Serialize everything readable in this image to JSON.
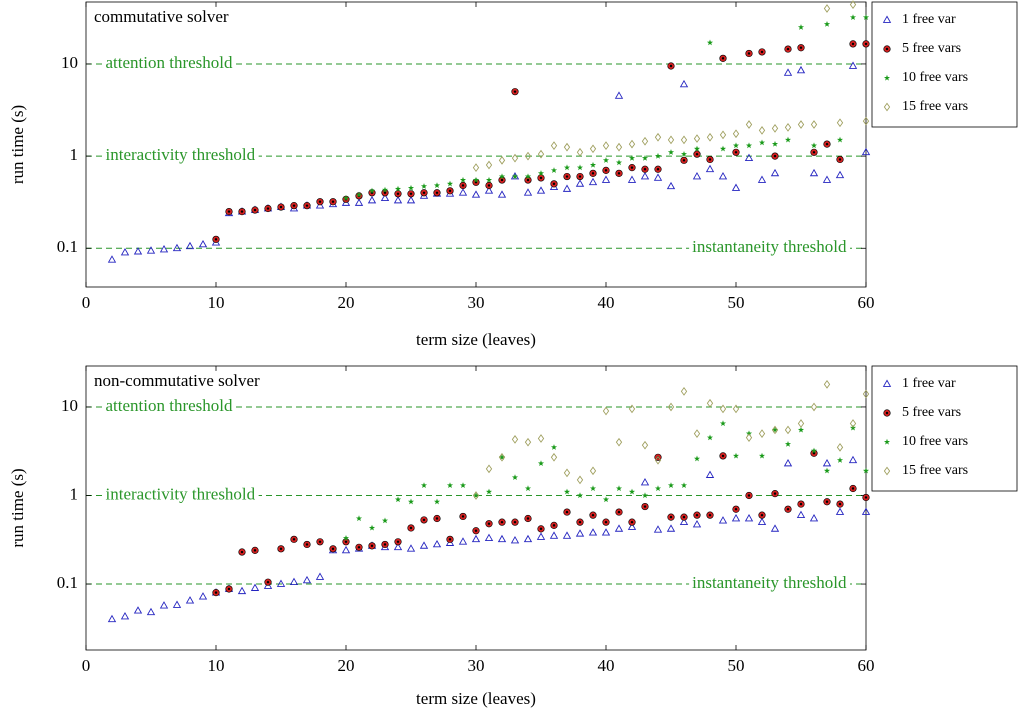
{
  "chart_data": [
    {
      "type": "scatter",
      "title": "commutative solver",
      "xlabel": "term size (leaves)",
      "ylabel": "run time (s)",
      "xlim": [
        0,
        60
      ],
      "xticks": [
        0,
        10,
        20,
        30,
        40,
        50,
        60
      ],
      "ylim": [
        0.038,
        47
      ],
      "yticks": [
        0.1,
        1,
        10
      ],
      "log_y": true,
      "legend": "outside-right",
      "thresholds": [
        {
          "value": 10,
          "label": "attention threshold",
          "align": "left"
        },
        {
          "value": 1,
          "label": "interactivity threshold",
          "align": "left"
        },
        {
          "value": 0.1,
          "label": "instantaneity threshold",
          "align": "right"
        }
      ],
      "threshold_color": "#2a962a",
      "x": [
        2,
        3,
        4,
        5,
        6,
        7,
        8,
        9,
        10,
        11,
        12,
        13,
        14,
        15,
        16,
        17,
        18,
        19,
        20,
        21,
        22,
        23,
        24,
        25,
        26,
        27,
        28,
        29,
        30,
        31,
        32,
        33,
        34,
        35,
        36,
        37,
        38,
        39,
        40,
        41,
        42,
        43,
        44,
        45,
        46,
        47,
        48,
        49,
        50,
        51,
        52,
        53,
        54,
        55,
        56,
        57,
        58,
        59,
        60
      ],
      "series": [
        {
          "name": "1 free var",
          "color": "#2424c0",
          "marker": "triangle",
          "values": [
            0.075,
            0.09,
            0.092,
            0.094,
            0.097,
            0.1,
            0.105,
            0.11,
            0.115,
            0.24,
            0.25,
            0.26,
            0.27,
            0.28,
            0.27,
            0.29,
            0.29,
            0.3,
            0.31,
            0.31,
            0.33,
            0.35,
            0.33,
            0.33,
            0.37,
            0.39,
            0.39,
            0.4,
            0.38,
            0.42,
            0.38,
            0.6,
            0.4,
            0.42,
            0.46,
            0.44,
            0.5,
            0.52,
            0.55,
            4.5,
            0.55,
            0.6,
            0.58,
            0.47,
            6,
            0.6,
            0.72,
            0.6,
            0.45,
            0.95,
            0.55,
            0.65,
            8,
            8.5,
            0.65,
            0.55,
            0.62,
            9.5,
            1.1
          ]
        },
        {
          "name": "5 free vars",
          "color": "#d42020",
          "marker": "circle",
          "values": [
            null,
            null,
            null,
            null,
            null,
            null,
            null,
            null,
            0.125,
            0.25,
            0.25,
            0.26,
            0.27,
            0.28,
            0.29,
            0.29,
            0.32,
            0.32,
            0.34,
            0.37,
            0.4,
            0.4,
            0.39,
            0.39,
            0.4,
            0.4,
            0.42,
            0.48,
            0.52,
            0.48,
            0.55,
            5,
            0.55,
            0.58,
            0.5,
            0.6,
            0.6,
            0.65,
            0.7,
            0.65,
            0.75,
            0.72,
            0.72,
            9.5,
            0.9,
            1.05,
            0.92,
            11.5,
            1.1,
            13,
            13.5,
            1.0,
            14.5,
            15,
            1.1,
            1.35,
            0.92,
            16.5,
            16.5
          ]
        },
        {
          "name": "10 free vars",
          "color": "#1a9a1a",
          "marker": "star",
          "values": [
            null,
            null,
            null,
            null,
            null,
            null,
            null,
            null,
            null,
            null,
            null,
            null,
            null,
            null,
            null,
            null,
            null,
            null,
            0.35,
            0.38,
            0.42,
            0.43,
            0.44,
            0.45,
            0.47,
            0.48,
            0.5,
            0.55,
            0.55,
            0.55,
            0.6,
            0.6,
            0.6,
            0.65,
            0.7,
            0.75,
            0.75,
            0.8,
            0.9,
            0.85,
            0.95,
            0.95,
            1.0,
            1.1,
            1.05,
            1.2,
            17,
            1.2,
            1.3,
            1.3,
            1.4,
            1.35,
            1.5,
            25,
            1.3,
            27,
            1.5,
            32,
            32
          ]
        },
        {
          "name": "15 free vars",
          "color": "#a0a060",
          "marker": "diamond",
          "values": [
            null,
            null,
            null,
            null,
            null,
            null,
            null,
            null,
            null,
            null,
            null,
            null,
            null,
            null,
            null,
            null,
            null,
            null,
            null,
            null,
            null,
            null,
            null,
            null,
            null,
            null,
            null,
            null,
            0.75,
            0.8,
            0.9,
            0.95,
            1.0,
            1.05,
            1.3,
            1.25,
            1.1,
            1.2,
            1.3,
            1.25,
            1.35,
            1.45,
            1.6,
            1.5,
            1.5,
            1.55,
            1.6,
            1.7,
            1.75,
            2.2,
            1.9,
            2.0,
            2.05,
            2.2,
            2.2,
            40,
            2.3,
            44,
            2.4
          ]
        }
      ]
    },
    {
      "type": "scatter",
      "title": "non-commutative solver",
      "xlabel": "term size (leaves)",
      "ylabel": "run time (s)",
      "xlim": [
        0,
        60
      ],
      "xticks": [
        0,
        10,
        20,
        30,
        40,
        50,
        60
      ],
      "ylim": [
        0.018,
        29
      ],
      "yticks": [
        0.1,
        1,
        10
      ],
      "log_y": true,
      "legend": "outside-right",
      "thresholds": [
        {
          "value": 10,
          "label": "attention threshold",
          "align": "left"
        },
        {
          "value": 1,
          "label": "interactivity threshold",
          "align": "left"
        },
        {
          "value": 0.1,
          "label": "instantaneity threshold",
          "align": "right"
        }
      ],
      "threshold_color": "#2a962a",
      "x": [
        2,
        3,
        4,
        5,
        6,
        7,
        8,
        9,
        10,
        11,
        12,
        13,
        14,
        15,
        16,
        17,
        18,
        19,
        20,
        21,
        22,
        23,
        24,
        25,
        26,
        27,
        28,
        29,
        30,
        31,
        32,
        33,
        34,
        35,
        36,
        37,
        38,
        39,
        40,
        41,
        42,
        43,
        44,
        45,
        46,
        47,
        48,
        49,
        50,
        51,
        52,
        53,
        54,
        55,
        56,
        57,
        58,
        59,
        60
      ],
      "series": [
        {
          "name": "1 free var",
          "color": "#2424c0",
          "marker": "triangle",
          "values": [
            0.04,
            0.043,
            0.05,
            0.048,
            0.057,
            0.058,
            0.065,
            0.072,
            0.08,
            0.088,
            0.083,
            0.09,
            0.095,
            0.1,
            0.105,
            0.11,
            0.12,
            0.24,
            0.24,
            0.25,
            0.27,
            0.26,
            0.26,
            0.25,
            0.27,
            0.28,
            0.29,
            0.3,
            0.32,
            0.33,
            0.32,
            0.31,
            0.32,
            0.34,
            0.35,
            0.35,
            0.37,
            0.38,
            0.38,
            0.42,
            0.44,
            1.4,
            0.41,
            0.42,
            0.5,
            0.47,
            1.7,
            0.52,
            0.55,
            0.55,
            0.5,
            0.42,
            2.3,
            0.6,
            0.55,
            2.3,
            0.65,
            2.5,
            0.65
          ]
        },
        {
          "name": "5 free vars",
          "color": "#d42020",
          "marker": "circle",
          "values": [
            null,
            null,
            null,
            null,
            null,
            null,
            null,
            null,
            0.08,
            0.088,
            0.23,
            0.24,
            0.105,
            0.25,
            0.32,
            0.28,
            0.3,
            0.25,
            0.3,
            0.26,
            0.27,
            0.28,
            0.3,
            0.43,
            0.53,
            0.55,
            0.32,
            0.58,
            0.4,
            0.48,
            0.5,
            0.5,
            0.55,
            0.42,
            0.46,
            0.65,
            0.5,
            0.6,
            0.5,
            0.65,
            0.5,
            0.75,
            2.7,
            0.57,
            0.57,
            0.6,
            0.6,
            2.8,
            0.7,
            1.0,
            0.6,
            1.05,
            0.7,
            0.8,
            3.0,
            0.85,
            0.8,
            1.2,
            0.95
          ]
        },
        {
          "name": "10 free vars",
          "color": "#1a9a1a",
          "marker": "star",
          "values": [
            null,
            null,
            null,
            null,
            null,
            null,
            null,
            null,
            null,
            null,
            null,
            null,
            null,
            null,
            null,
            null,
            null,
            null,
            0.33,
            0.55,
            0.43,
            0.52,
            0.9,
            0.85,
            1.3,
            0.85,
            1.3,
            1.3,
            1.0,
            1.1,
            2.7,
            1.6,
            1.2,
            2.3,
            3.5,
            1.1,
            1.0,
            1.2,
            0.9,
            1.2,
            1.1,
            1.0,
            1.2,
            1.3,
            1.3,
            2.6,
            4.5,
            6.5,
            2.8,
            5,
            2.8,
            5.5,
            3.8,
            5.5,
            3.2,
            1.9,
            2.5,
            5.8,
            1.9
          ]
        },
        {
          "name": "15 free vars",
          "color": "#a0a060",
          "marker": "diamond",
          "values": [
            null,
            null,
            null,
            null,
            null,
            null,
            null,
            null,
            null,
            null,
            null,
            null,
            null,
            null,
            null,
            null,
            null,
            null,
            null,
            null,
            null,
            null,
            null,
            null,
            null,
            null,
            null,
            null,
            1.0,
            2.0,
            2.7,
            4.3,
            4.0,
            4.4,
            2.7,
            1.8,
            1.5,
            1.9,
            9,
            4,
            9.5,
            3.7,
            2.5,
            10,
            15,
            5,
            11,
            9.5,
            9.5,
            4.5,
            5,
            5.5,
            5.5,
            6.5,
            10,
            18,
            3.5,
            6.5,
            14
          ]
        }
      ]
    }
  ]
}
